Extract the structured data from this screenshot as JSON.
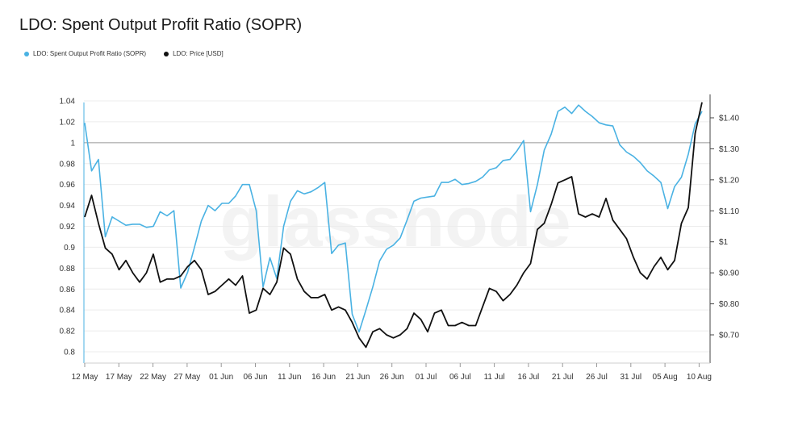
{
  "title": "LDO: Spent Output Profit Ratio (SOPR)",
  "watermark": "glassnode",
  "legend": [
    {
      "label": "LDO: Spent Output Profit Ratio (SOPR)",
      "color": "#4ab2e3"
    },
    {
      "label": "LDO: Price [USD]",
      "color": "#111111"
    }
  ],
  "chart_data": {
    "type": "line",
    "x_labels": [
      "12 May",
      "17 May",
      "22 May",
      "27 May",
      "01 Jun",
      "06 Jun",
      "11 Jun",
      "16 Jun",
      "21 Jun",
      "26 Jun",
      "01 Jul",
      "06 Jul",
      "11 Jul",
      "16 Jul",
      "21 Jul",
      "26 Jul",
      "31 Jul",
      "05 Aug",
      "10 Aug"
    ],
    "y_left": {
      "ticks": [
        "1.04",
        "1.02",
        "1",
        "0.98",
        "0.96",
        "0.94",
        "0.92",
        "0.9",
        "0.88",
        "0.86",
        "0.84",
        "0.82",
        "0.8"
      ],
      "range": [
        0.795,
        1.04
      ],
      "reference_line": 1.0
    },
    "y_right": {
      "ticks": [
        "$1.40",
        "$1.30",
        "$1.20",
        "$1.10",
        "$1",
        "$0.90",
        "$0.80",
        "$0.70"
      ],
      "tick_values": [
        1.4,
        1.3,
        1.2,
        1.1,
        1.0,
        0.9,
        0.8,
        0.7
      ]
    },
    "grid": true,
    "series": [
      {
        "name": "LDO: Spent Output Profit Ratio (SOPR)",
        "axis": "left",
        "color": "#4ab2e3",
        "values": [
          1.019,
          0.973,
          0.984,
          0.91,
          0.929,
          0.925,
          0.921,
          0.922,
          0.922,
          0.919,
          0.92,
          0.934,
          0.93,
          0.935,
          0.861,
          0.876,
          0.9,
          0.925,
          0.94,
          0.935,
          0.942,
          0.942,
          0.949,
          0.96,
          0.96,
          0.935,
          0.862,
          0.89,
          0.87,
          0.92,
          0.944,
          0.954,
          0.951,
          0.953,
          0.957,
          0.962,
          0.894,
          0.902,
          0.904,
          0.836,
          0.819,
          0.84,
          0.862,
          0.887,
          0.898,
          0.902,
          0.909,
          0.926,
          0.944,
          0.947,
          0.948,
          0.949,
          0.962,
          0.962,
          0.965,
          0.96,
          0.961,
          0.963,
          0.967,
          0.974,
          0.976,
          0.983,
          0.984,
          0.992,
          1.002,
          0.934,
          0.96,
          0.993,
          1.008,
          1.03,
          1.034,
          1.028,
          1.036,
          1.03,
          1.025,
          1.019,
          1.017,
          1.016,
          0.998,
          0.991,
          0.987,
          0.981,
          0.973,
          0.968,
          0.962,
          0.937,
          0.958,
          0.967,
          0.989,
          1.018,
          1.03
        ]
      },
      {
        "name": "LDO: Price [USD]",
        "axis": "right",
        "color": "#111111",
        "values": [
          1.08,
          1.15,
          1.06,
          0.98,
          0.96,
          0.91,
          0.94,
          0.9,
          0.87,
          0.9,
          0.96,
          0.87,
          0.88,
          0.88,
          0.89,
          0.92,
          0.94,
          0.91,
          0.83,
          0.84,
          0.86,
          0.88,
          0.86,
          0.89,
          0.77,
          0.78,
          0.85,
          0.83,
          0.87,
          0.98,
          0.96,
          0.88,
          0.84,
          0.82,
          0.82,
          0.83,
          0.78,
          0.79,
          0.78,
          0.74,
          0.69,
          0.66,
          0.71,
          0.72,
          0.7,
          0.69,
          0.7,
          0.72,
          0.77,
          0.75,
          0.71,
          0.77,
          0.78,
          0.73,
          0.73,
          0.74,
          0.73,
          0.73,
          0.79,
          0.85,
          0.84,
          0.81,
          0.83,
          0.86,
          0.9,
          0.93,
          1.04,
          1.06,
          1.12,
          1.19,
          1.2,
          1.21,
          1.09,
          1.08,
          1.09,
          1.08,
          1.14,
          1.07,
          1.04,
          1.01,
          0.95,
          0.9,
          0.88,
          0.92,
          0.95,
          0.91,
          0.94,
          1.06,
          1.11,
          1.35,
          1.45
        ]
      }
    ]
  }
}
